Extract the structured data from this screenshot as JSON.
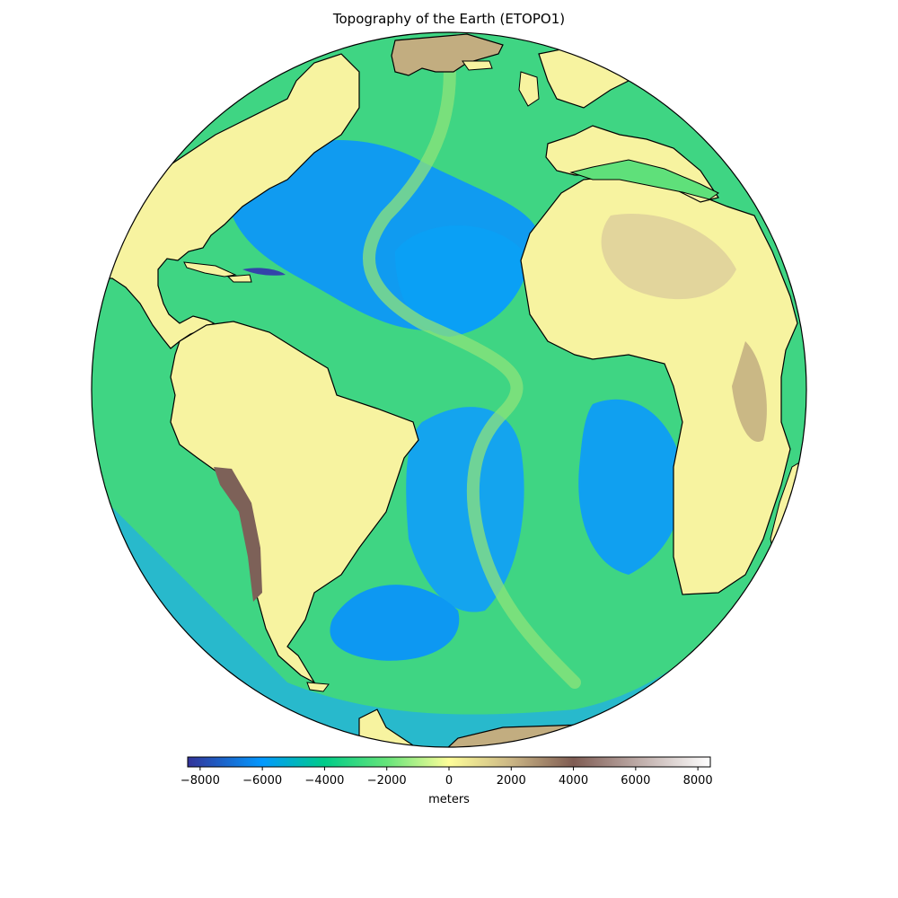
{
  "title": "Topography of the Earth (ETOPO1)",
  "colorbar": {
    "label": "meters",
    "ticks": [
      -8000,
      -6000,
      -4000,
      -2000,
      0,
      2000,
      4000,
      6000,
      8000
    ],
    "tick_labels": [
      "−8000",
      "−6000",
      "−4000",
      "−2000",
      "0",
      "2000",
      "4000",
      "6000",
      "8000"
    ],
    "range": [
      -8400,
      8400
    ],
    "colormap": "terrain",
    "stops": [
      {
        "value": -8400,
        "color": "#333399"
      },
      {
        "value": -6000,
        "color": "#0299ff"
      },
      {
        "value": -4000,
        "color": "#00cc88"
      },
      {
        "value": -2000,
        "color": "#66e47a"
      },
      {
        "value": 0,
        "color": "#fefe99"
      },
      {
        "value": 2000,
        "color": "#cbb685"
      },
      {
        "value": 4000,
        "color": "#7f5c53"
      },
      {
        "value": 6000,
        "color": "#bba8a4"
      },
      {
        "value": 8400,
        "color": "#ffffff"
      }
    ]
  },
  "colors": {
    "land_lowland": "#f7f3a0",
    "land_high": "#c2ad80",
    "mountain": "#7d6158",
    "ocean_shelf": "#5fe07a",
    "ocean_mid": "#22c98a",
    "ocean_deep": "#129bf0",
    "coastline": "#000000"
  }
}
